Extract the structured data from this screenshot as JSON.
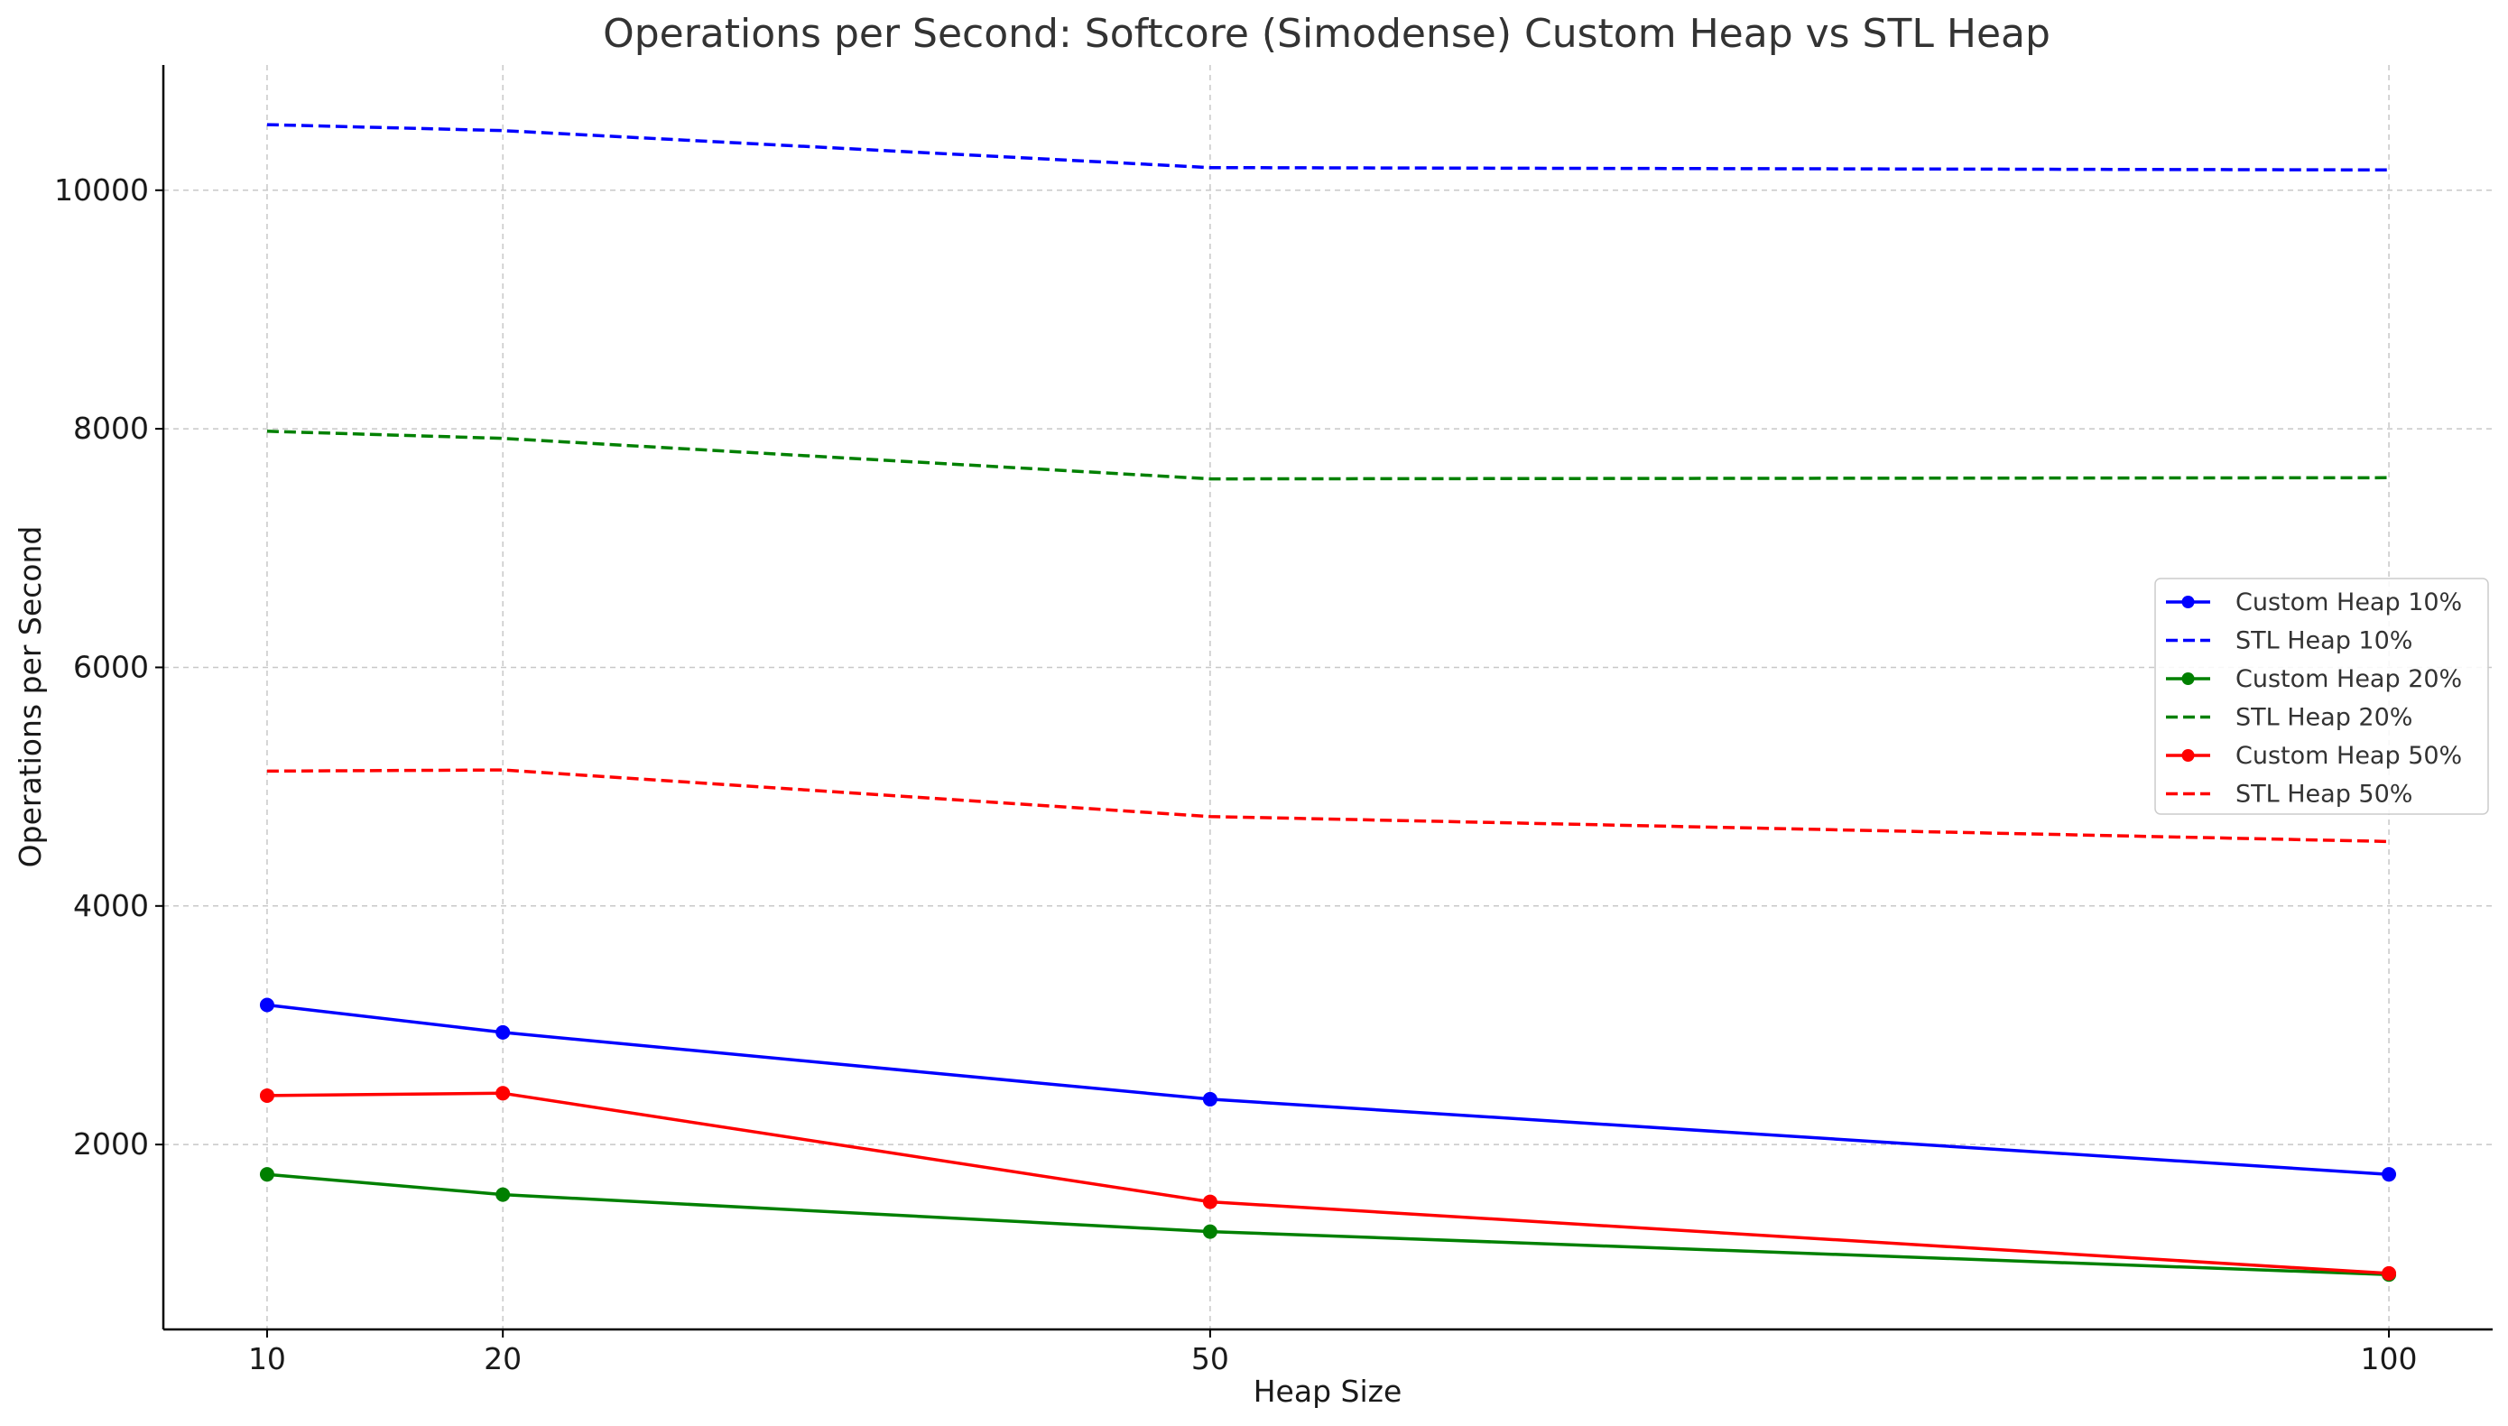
{
  "chart_data": {
    "type": "line",
    "title": "Operations per Second: Softcore (Simodense) Custom Heap vs STL Heap",
    "xlabel": "Heap Size",
    "ylabel": "Operations per Second",
    "x": [
      10,
      20,
      50,
      100
    ],
    "x_ticks": [
      "10",
      "20",
      "50",
      "100"
    ],
    "y_ticks": [
      "2000",
      "4000",
      "6000",
      "8000",
      "10000"
    ],
    "xlim": [
      5.6,
      104.4
    ],
    "ylim": [
      450,
      11050
    ],
    "grid": true,
    "legend_position": "center-right",
    "series": [
      {
        "name": "Custom Heap 10%",
        "color": "#0000ff",
        "style": "solid",
        "markers": true,
        "values": [
          3170,
          2940,
          2380,
          1750
        ]
      },
      {
        "name": "STL Heap 10%",
        "color": "#0000ff",
        "style": "dashed",
        "markers": false,
        "values": [
          10550,
          10500,
          10190,
          10170
        ]
      },
      {
        "name": "Custom Heap 20%",
        "color": "#008000",
        "style": "solid",
        "markers": true,
        "values": [
          1750,
          1580,
          1270,
          910
        ]
      },
      {
        "name": "STL Heap 20%",
        "color": "#008000",
        "style": "dashed",
        "markers": false,
        "values": [
          7980,
          7920,
          7580,
          7590
        ]
      },
      {
        "name": "Custom Heap 50%",
        "color": "#ff0000",
        "style": "solid",
        "markers": true,
        "values": [
          2410,
          2430,
          1520,
          920
        ]
      },
      {
        "name": "STL Heap 50%",
        "color": "#ff0000",
        "style": "dashed",
        "markers": false,
        "values": [
          5130,
          5140,
          4750,
          4540
        ]
      }
    ]
  }
}
